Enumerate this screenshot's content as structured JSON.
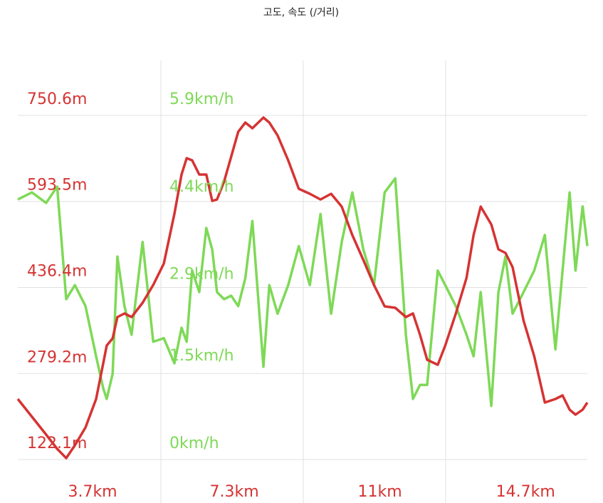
{
  "chart_data": {
    "type": "line",
    "title": "고도, 속도 (/거리)",
    "x": [
      1.8,
      2.16,
      2.52,
      2.8,
      3.03,
      3.25,
      3.52,
      3.79,
      3.97,
      4.06,
      4.21,
      4.33,
      4.51,
      4.69,
      4.97,
      5.24,
      5.51,
      5.78,
      5.96,
      6.09,
      6.23,
      6.41,
      6.59,
      6.74,
      6.86,
      7.04,
      7.22,
      7.4,
      7.58,
      7.76,
      8.04,
      8.19,
      8.4,
      8.67,
      8.94,
      9.22,
      9.49,
      9.76,
      10.03,
      10.3,
      10.58,
      10.85,
      11.12,
      11.39,
      11.66,
      11.84,
      12.02,
      12.2,
      12.47,
      12.66,
      12.93,
      13.2,
      13.38,
      13.56,
      13.83,
      14.01,
      14.19,
      14.37,
      14.65,
      14.92,
      15.19,
      15.46,
      15.64,
      15.82,
      15.97,
      16.15,
      16.27
    ],
    "series": [
      {
        "name": "고도",
        "color": "#d63333",
        "values": [
          232.7,
          200.2,
          167.6,
          141.6,
          124.7,
          148.1,
          180.7,
          232.7,
          297.8,
          330.3,
          343.3,
          382.3,
          388.8,
          382.3,
          408.4,
          440.9,
          479.9,
          571.0,
          642.6,
          672.5,
          668.6,
          642.6,
          642.6,
          594.4,
          597.0,
          629.6,
          675.1,
          720.7,
          737.6,
          727.2,
          746.7,
          737.6,
          714.1,
          668.6,
          616.6,
          607.4,
          597.0,
          607.4,
          584.0,
          532.0,
          486.4,
          440.9,
          401.9,
          399.3,
          382.3,
          388.8,
          349.8,
          304.3,
          295.2,
          330.3,
          388.8,
          453.9,
          532.0,
          584.0,
          551.5,
          506.0,
          499.4,
          473.4,
          375.8,
          310.8,
          226.2,
          232.7,
          239.2,
          213.2,
          204.1,
          213.2,
          226.2
        ]
      },
      {
        "name": "속도",
        "color": "#7ed957",
        "axis": "y2",
        "values": [
          4.46,
          4.58,
          4.4,
          4.68,
          2.75,
          2.99,
          2.63,
          1.77,
          1.22,
          1.04,
          1.47,
          3.48,
          2.63,
          2.14,
          3.73,
          2.02,
          2.08,
          1.65,
          2.26,
          2.02,
          3.24,
          2.87,
          3.97,
          3.6,
          2.87,
          2.75,
          2.81,
          2.63,
          3.11,
          4.09,
          1.59,
          2.99,
          2.5,
          2.99,
          3.66,
          2.99,
          4.21,
          2.5,
          3.73,
          4.58,
          3.6,
          2.99,
          4.58,
          4.82,
          2.14,
          1.04,
          1.28,
          1.28,
          3.24,
          2.99,
          2.63,
          2.14,
          1.77,
          2.87,
          0.92,
          2.87,
          3.48,
          2.5,
          2.87,
          3.24,
          3.85,
          1.89,
          3.24,
          4.58,
          3.24,
          4.34,
          3.66
        ]
      }
    ],
    "xlim": [
      1.8,
      16.27
    ],
    "xticks": [
      {
        "value": 3.7,
        "label": "3.7km"
      },
      {
        "value": 7.3,
        "label": "7.3km"
      },
      {
        "value": 11,
        "label": "11km"
      },
      {
        "value": 14.7,
        "label": "14.7km"
      }
    ],
    "ylim": [
      122.1,
      750.6
    ],
    "yticks": [
      {
        "value": 122.1,
        "label": "122.1m"
      },
      {
        "value": 279.2,
        "label": "279.2m"
      },
      {
        "value": 436.4,
        "label": "436.4m"
      },
      {
        "value": 593.5,
        "label": "593.5m"
      },
      {
        "value": 750.6,
        "label": "750.6m"
      }
    ],
    "y2lim": [
      0,
      5.9
    ],
    "y2ticks": [
      {
        "value": 0,
        "label": "0km/h"
      },
      {
        "value": 1.5,
        "label": "1.5km/h"
      },
      {
        "value": 2.9,
        "label": "2.9km/h"
      },
      {
        "value": 4.4,
        "label": "4.4km/h"
      },
      {
        "value": 5.9,
        "label": "5.9km/h"
      }
    ],
    "grid": true
  }
}
